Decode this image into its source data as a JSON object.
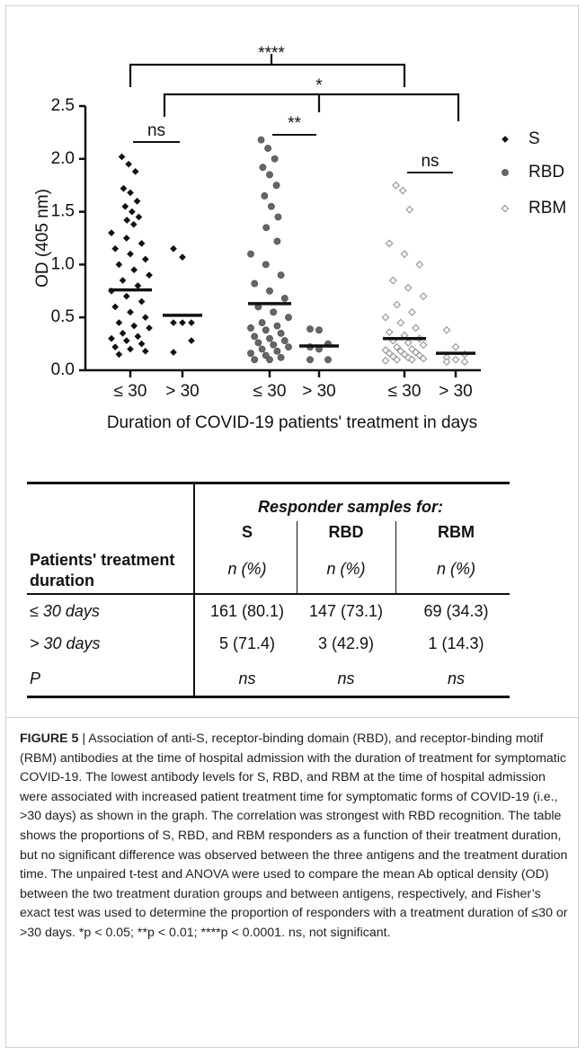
{
  "chart_data": {
    "type": "strip",
    "y_label": "OD (405 nm)",
    "x_label": "Duration of COVID-19 patients' treatment in days",
    "ylim": [
      0,
      2.5
    ],
    "yticks": [
      {
        "value": 0,
        "label": "0.0"
      },
      0.5,
      {
        "value": 1,
        "label": "1.0"
      },
      1.5,
      {
        "value": 2,
        "label": "2.0"
      },
      2.5
    ],
    "comparisons": [
      "****",
      "*"
    ],
    "series": [
      {
        "name": "S",
        "color": "#111111",
        "marker": "diamond",
        "significance": "ns",
        "categories": [
          "≤ 30",
          "> 30"
        ],
        "values": [
          [
            2.02,
            1.95,
            1.88,
            1.72,
            1.68,
            1.6,
            1.55,
            1.5,
            1.45,
            1.42,
            1.38,
            1.3,
            1.25,
            1.2,
            1.15,
            1.1,
            1.05,
            1.0,
            0.95,
            0.9,
            0.85,
            0.8,
            0.75,
            0.7,
            0.65,
            0.6,
            0.55,
            0.5,
            0.45,
            0.42,
            0.4,
            0.35,
            0.32,
            0.3,
            0.28,
            0.25,
            0.22,
            0.2,
            0.18,
            0.15
          ],
          [
            1.15,
            1.07,
            0.45,
            0.45,
            0.45,
            0.28,
            0.17
          ]
        ],
        "means": [
          0.76,
          0.52
        ]
      },
      {
        "name": "RBD",
        "color": "#666666",
        "marker": "circle",
        "significance": "**",
        "categories": [
          "≤ 30",
          "> 30"
        ],
        "values": [
          [
            2.18,
            2.1,
            2.0,
            1.92,
            1.85,
            1.75,
            1.65,
            1.55,
            1.45,
            1.35,
            1.22,
            1.1,
            1.0,
            0.9,
            0.82,
            0.75,
            0.68,
            0.6,
            0.55,
            0.5,
            0.45,
            0.42,
            0.4,
            0.38,
            0.35,
            0.32,
            0.3,
            0.28,
            0.26,
            0.24,
            0.22,
            0.2,
            0.18,
            0.16,
            0.14,
            0.12,
            0.1,
            0.1
          ],
          [
            0.39,
            0.38,
            0.25,
            0.22,
            0.2,
            0.1,
            0.1
          ]
        ],
        "means": [
          0.63,
          0.23
        ]
      },
      {
        "name": "RBM",
        "color": "#999999",
        "marker": "open-diamond",
        "significance": "ns",
        "categories": [
          "≤ 30",
          "> 30"
        ],
        "values": [
          [
            1.75,
            1.7,
            1.52,
            1.2,
            1.1,
            1.0,
            0.85,
            0.78,
            0.7,
            0.62,
            0.55,
            0.5,
            0.45,
            0.4,
            0.36,
            0.33,
            0.3,
            0.28,
            0.26,
            0.24,
            0.22,
            0.2,
            0.19,
            0.18,
            0.17,
            0.16,
            0.15,
            0.14,
            0.13,
            0.12,
            0.11,
            0.1,
            0.1,
            0.09
          ],
          [
            0.38,
            0.22,
            0.15,
            0.12,
            0.1,
            0.08,
            0.08
          ]
        ],
        "means": [
          0.3,
          0.16
        ]
      }
    ]
  },
  "table": {
    "group_header": "Responder samples for:",
    "columns": [
      "S",
      "RBD",
      "RBM"
    ],
    "row_header": "Patients' treatment duration",
    "units": [
      "n (%)",
      "n (%)",
      "n (%)"
    ],
    "rows": [
      [
        "≤ 30 days",
        "161 (80.1)",
        "147 (73.1)",
        "69 (34.3)"
      ],
      [
        "> 30 days",
        "5 (71.4)",
        "3 (42.9)",
        "1 (14.3)"
      ],
      [
        "P",
        "ns",
        "ns",
        "ns"
      ]
    ]
  },
  "caption": {
    "label": "FIGURE 5",
    "text": "| Association of anti-S, receptor-binding domain (RBD), and receptor-binding motif (RBM) antibodies at the time of hospital admission with the duration of treatment for symptomatic COVID-19. The lowest antibody levels for S, RBD, and RBM at the time of hospital admission were associated with increased patient treatment time for symptomatic forms of COVID-19 (i.e., >30 days) as shown in the graph. The correlation was strongest with RBD recognition. The table shows the proportions of S, RBD, and RBM responders as a function of their treatment duration, but no significant difference was observed between the three antigens and the treatment duration time. The unpaired t-test and ANOVA were used to compare the mean Ab optical density (OD) between the two treatment duration groups and between antigens, respectively, and Fisher’s exact test was used to determine the proportion of responders with a treatment duration of ≤30 or >30 days. *p < 0.05; **p < 0.01; ****p < 0.0001. ns, not significant."
  }
}
